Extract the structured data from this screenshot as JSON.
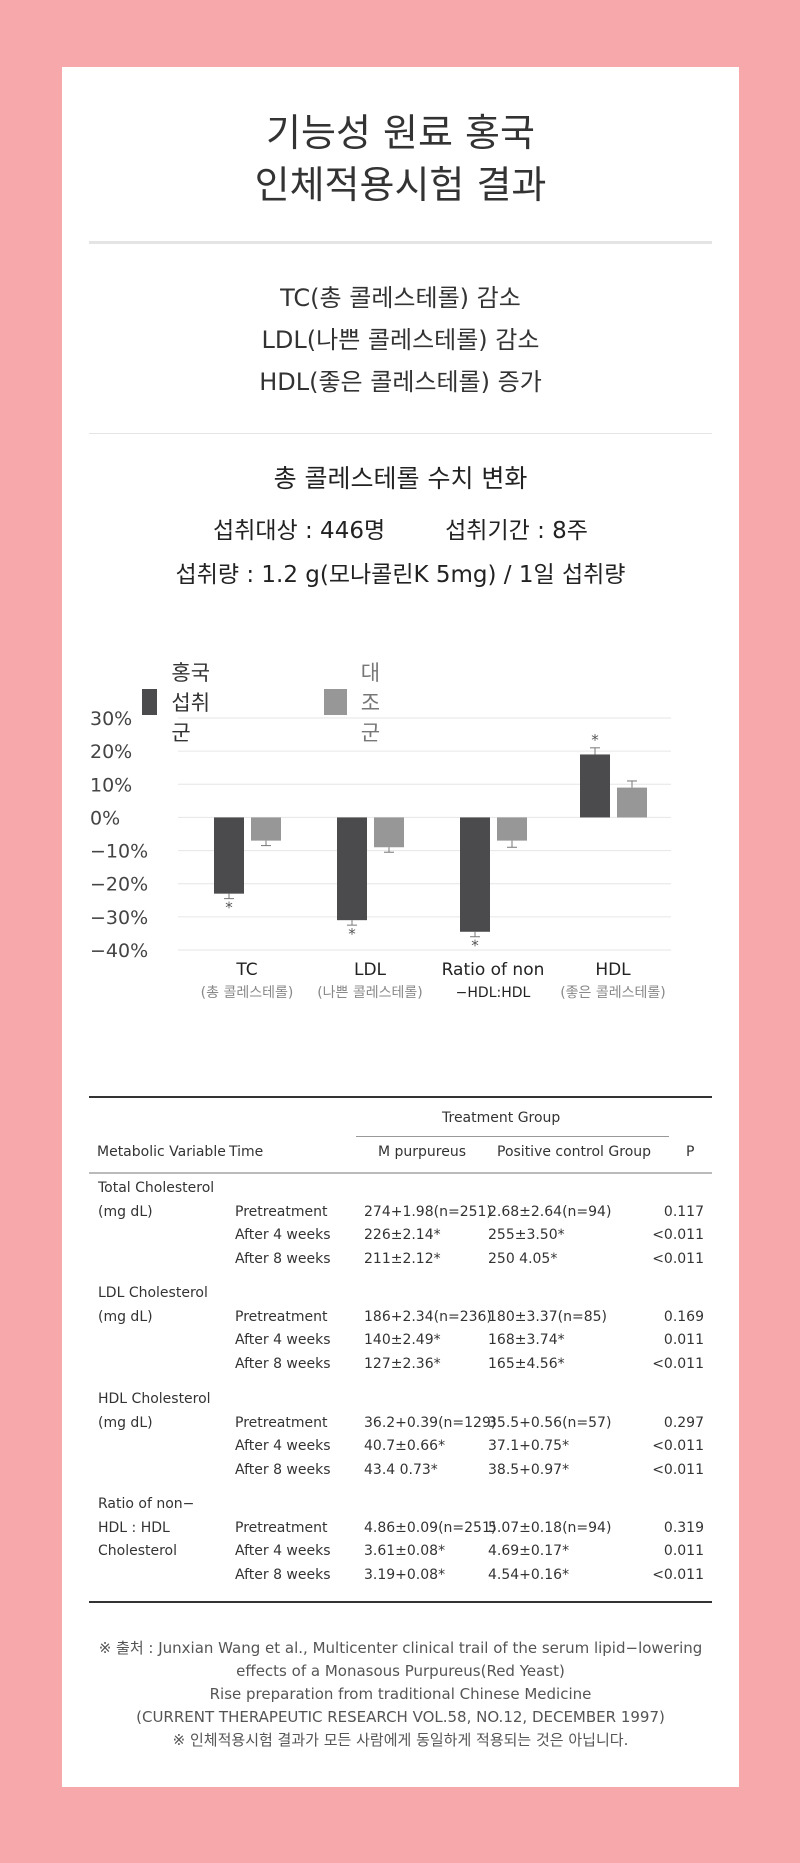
{
  "title": {
    "line1": "기능성 원료 홍국",
    "line2": "인체적용시험 결과"
  },
  "summary": [
    "TC(총 콜레스테롤) 감소",
    "LDL(나쁜 콜레스테롤) 감소",
    "HDL(좋은 콜레스테롤) 증가"
  ],
  "chart_section": {
    "heading": "총 콜레스테롤 수치 변화",
    "subjects": "섭취대상 : 446명",
    "period": "섭취기간 : 8주",
    "dose": "섭취량 : 1.2 g(모나콜린K 5mg) / 1일 섭취량"
  },
  "chart_data": {
    "type": "bar",
    "categories": [
      {
        "label": "TC",
        "sublabel": "(총 콜레스테롤)"
      },
      {
        "label": "LDL",
        "sublabel": "(나쁜 콜레스테롤)"
      },
      {
        "label": "Ratio of non",
        "sublabel": "−HDL:HDL"
      },
      {
        "label": "HDL",
        "sublabel": "(좋은 콜레스테롤)"
      }
    ],
    "series": [
      {
        "name": "홍국 섭취군",
        "color": "#4b4b4d",
        "values": [
          -23,
          -31,
          -34.5,
          19
        ],
        "errors": [
          1.5,
          1.5,
          1.5,
          2
        ],
        "stars": [
          true,
          true,
          true,
          true
        ]
      },
      {
        "name": "대조군",
        "color": "#979797",
        "values": [
          -7,
          -9,
          -7,
          9
        ],
        "errors": [
          1.5,
          1.5,
          2,
          2
        ],
        "stars": [
          false,
          false,
          false,
          false
        ]
      }
    ],
    "yticks": [
      30,
      20,
      10,
      0,
      -10,
      -20,
      -30,
      -40
    ],
    "ytick_labels": [
      "30%",
      "20%",
      "10%",
      "0%",
      "−10%",
      "−20%",
      "−30%",
      "−40%"
    ],
    "ylim": [
      -40,
      30
    ],
    "star_symbol": "*",
    "legend_position": "top-left",
    "grid": true
  },
  "table": {
    "group_header": "Treatment Group",
    "headers": [
      "Metabolic Variable",
      "Time",
      "M purpureus",
      "Positive control Group",
      "P"
    ],
    "sections": [
      {
        "variable": [
          "Total Cholesterol",
          "(mg dL)"
        ],
        "rows": [
          [
            "Pretreatment",
            "274+1.98(n=251)",
            "2.68±2.64(n=94)",
            "0.117"
          ],
          [
            "After 4 weeks",
            "226±2.14*",
            "255±3.50*",
            "<0.011"
          ],
          [
            "After 8 weeks",
            "211±2.12*",
            "250 4.05*",
            "<0.011"
          ]
        ]
      },
      {
        "variable": [
          "LDL Cholesterol",
          "(mg dL)"
        ],
        "rows": [
          [
            "Pretreatment",
            "186+2.34(n=236)",
            "180±3.37(n=85)",
            "0.169"
          ],
          [
            "After 4 weeks",
            "140±2.49*",
            "168±3.74*",
            "0.011"
          ],
          [
            "After 8 weeks",
            "127±2.36*",
            "165±4.56*",
            "<0.011"
          ]
        ]
      },
      {
        "variable": [
          "HDL Cholesterol",
          "(mg dL)"
        ],
        "rows": [
          [
            "Pretreatment",
            "36.2+0.39(n=129)",
            "35.5+0.56(n=57)",
            "0.297"
          ],
          [
            "After 4 weeks",
            "40.7±0.66*",
            "37.1+0.75*",
            "<0.011"
          ],
          [
            "After 8 weeks",
            "43.4 0.73*",
            "38.5+0.97*",
            "<0.011"
          ]
        ]
      },
      {
        "variable": [
          "Ratio of non−",
          "HDL : HDL",
          "Cholesterol"
        ],
        "rows": [
          [
            "Pretreatment",
            "4.86±0.09(n=251)",
            "5.07±0.18(n=94)",
            "0.319"
          ],
          [
            "After 4 weeks",
            "3.61±0.08*",
            "4.69±0.17*",
            "0.011"
          ],
          [
            "After 8 weeks",
            "3.19+0.08*",
            "4.54+0.16*",
            "<0.011"
          ]
        ]
      }
    ]
  },
  "footnote": [
    "※ 출처 : Junxian Wang et al., Multicenter clinical trail of the serum lipid−lowering",
    "effects of a Monasous Purpureus(Red Yeast)",
    "Rise preparation from traditional Chinese Medicine",
    "(CURRENT THERAPEUTIC RESEARCH VOL.58, NO.12, DECEMBER 1997)",
    "※ 인체적용시험 결과가 모든 사람에게 동일하게 적용되는 것은 아닙니다."
  ]
}
